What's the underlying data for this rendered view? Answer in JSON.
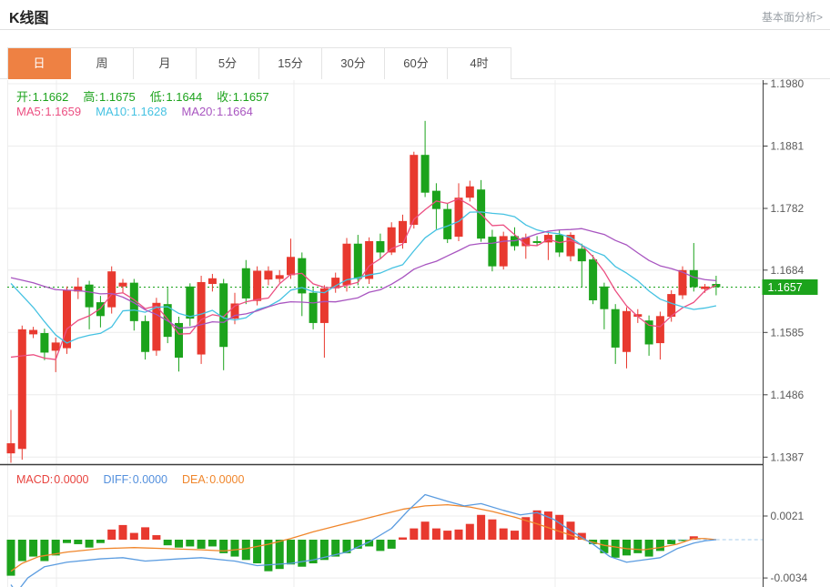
{
  "header": {
    "title": "K线图",
    "link_label": "基本面分析>"
  },
  "tabs": {
    "items": [
      "日",
      "周",
      "月",
      "5分",
      "15分",
      "30分",
      "60分",
      "4时"
    ],
    "active_index": 0
  },
  "ohlc_legend": [
    {
      "label": "开:",
      "value": "1.1662",
      "color": "#1ca31c"
    },
    {
      "label": "高:",
      "value": "1.1675",
      "color": "#1ca31c"
    },
    {
      "label": "低:",
      "value": "1.1644",
      "color": "#1ca31c"
    },
    {
      "label": "收:",
      "value": "1.1657",
      "color": "#1ca31c"
    }
  ],
  "ma_legend": [
    {
      "label": "MA5:",
      "value": "1.1659",
      "color": "#ec4f82"
    },
    {
      "label": "MA10:",
      "value": "1.1628",
      "color": "#45c2e2"
    },
    {
      "label": "MA20:",
      "value": "1.1664",
      "color": "#a855c0"
    }
  ],
  "macd_legend": [
    {
      "label": "MACD:",
      "value": "0.0000",
      "color": "#e8443f"
    },
    {
      "label": "DIFF:",
      "value": "0.0000",
      "color": "#5490dd"
    },
    {
      "label": "DEA:",
      "value": "0.0000",
      "color": "#f0862b"
    }
  ],
  "colors": {
    "up": "#e8392f",
    "down": "#1ca31c",
    "ma5": "#ec4f82",
    "ma10": "#45c2e2",
    "ma20": "#a855c0",
    "diff_line": "#5b9ce0",
    "dea_line": "#f0862b",
    "zero_dash": "#a9cdeb",
    "grid": "#ececec",
    "axis": "#3f3f3f",
    "axis_text": "#5a5a5a",
    "dotted_price_line": "#1ca31c",
    "price_tag_bg": "#1ca31c",
    "tab_active_bg": "#ee8143"
  },
  "chart_data": {
    "type": "candlestick+macd",
    "main": {
      "y_tick_labels": [
        "1.1980",
        "1.1881",
        "1.1782",
        "1.1684",
        "1.1585",
        "1.1486",
        "1.1387"
      ],
      "ylim": [
        1.1375,
        1.1985
      ],
      "last_price": "1.1657",
      "last_price_value": 1.1657,
      "ma_periods": [
        5,
        10,
        20
      ],
      "pre_closes": [
        1.167,
        1.167,
        1.167,
        1.167,
        1.167,
        1.167,
        1.167,
        1.167,
        1.167,
        1.167,
        1.178,
        1.178,
        1.178,
        1.178,
        1.178,
        1.178,
        1.158,
        1.158,
        1.158,
        1.158
      ],
      "candles_format": [
        "open",
        "high",
        "low",
        "close"
      ],
      "candles": [
        [
          1.1393,
          1.1462,
          1.1378,
          1.1409
        ],
        [
          1.14,
          1.1596,
          1.1383,
          1.159
        ],
        [
          1.1582,
          1.1594,
          1.1576,
          1.1589
        ],
        [
          1.1584,
          1.1591,
          1.1541,
          1.1553
        ],
        [
          1.1556,
          1.1577,
          1.1522,
          1.1569
        ],
        [
          1.156,
          1.1658,
          1.1551,
          1.1652
        ],
        [
          1.165,
          1.1672,
          1.1638,
          1.1658
        ],
        [
          1.1661,
          1.1667,
          1.159,
          1.1625
        ],
        [
          1.1633,
          1.1643,
          1.1593,
          1.1611
        ],
        [
          1.1625,
          1.169,
          1.1615,
          1.1682
        ],
        [
          1.1658,
          1.167,
          1.1648,
          1.1664
        ],
        [
          1.1664,
          1.167,
          1.1588,
          1.1603
        ],
        [
          1.1603,
          1.1612,
          1.1542,
          1.1554
        ],
        [
          1.1556,
          1.164,
          1.1548,
          1.1632
        ],
        [
          1.163,
          1.1656,
          1.1568,
          1.1578
        ],
        [
          1.16,
          1.161,
          1.1523,
          1.1545
        ],
        [
          1.1658,
          1.1663,
          1.1595,
          1.1607
        ],
        [
          1.155,
          1.1675,
          1.1535,
          1.1665
        ],
        [
          1.1662,
          1.1678,
          1.165,
          1.1671
        ],
        [
          1.1663,
          1.167,
          1.1525,
          1.1562
        ],
        [
          1.1607,
          1.1648,
          1.1598,
          1.1631
        ],
        [
          1.1687,
          1.17,
          1.163,
          1.1639
        ],
        [
          1.1635,
          1.169,
          1.1628,
          1.1683
        ],
        [
          1.1669,
          1.169,
          1.166,
          1.1683
        ],
        [
          1.167,
          1.1684,
          1.1664,
          1.1676
        ],
        [
          1.1676,
          1.1734,
          1.167,
          1.1705
        ],
        [
          1.1703,
          1.1712,
          1.1611,
          1.1647
        ],
        [
          1.1648,
          1.1656,
          1.159,
          1.16
        ],
        [
          1.16,
          1.166,
          1.1545,
          1.1655
        ],
        [
          1.1655,
          1.168,
          1.1648,
          1.1672
        ],
        [
          1.166,
          1.1735,
          1.165,
          1.1726
        ],
        [
          1.1726,
          1.174,
          1.166,
          1.167
        ],
        [
          1.167,
          1.1736,
          1.1662,
          1.173
        ],
        [
          1.173,
          1.1742,
          1.1702,
          1.1712
        ],
        [
          1.1712,
          1.176,
          1.1708,
          1.1752
        ],
        [
          1.1727,
          1.1772,
          1.1718,
          1.1762
        ],
        [
          1.1756,
          1.1872,
          1.175,
          1.1867
        ],
        [
          1.1867,
          1.1921,
          1.18,
          1.1807
        ],
        [
          1.181,
          1.1822,
          1.1749,
          1.1781
        ],
        [
          1.1781,
          1.179,
          1.1727,
          1.1733
        ],
        [
          1.1737,
          1.1822,
          1.173,
          1.1799
        ],
        [
          1.1799,
          1.1826,
          1.1793,
          1.1817
        ],
        [
          1.1812,
          1.1827,
          1.1729,
          1.1734
        ],
        [
          1.1737,
          1.1748,
          1.1682,
          1.169
        ],
        [
          1.169,
          1.1745,
          1.1685,
          1.1738
        ],
        [
          1.1738,
          1.1752,
          1.1715,
          1.1722
        ],
        [
          1.1722,
          1.1742,
          1.1702,
          1.1736
        ],
        [
          1.173,
          1.1738,
          1.1722,
          1.1728
        ],
        [
          1.1728,
          1.1745,
          1.17,
          1.174
        ],
        [
          1.174,
          1.1748,
          1.1705,
          1.1712
        ],
        [
          1.1706,
          1.1744,
          1.1698,
          1.174
        ],
        [
          1.1718,
          1.1726,
          1.1657,
          1.1698
        ],
        [
          1.1701,
          1.1708,
          1.163,
          1.1636
        ],
        [
          1.1658,
          1.1664,
          1.159,
          1.1622
        ],
        [
          1.1622,
          1.163,
          1.1535,
          1.1561
        ],
        [
          1.1554,
          1.1625,
          1.1528,
          1.1619
        ],
        [
          1.161,
          1.1622,
          1.16,
          1.1614
        ],
        [
          1.1604,
          1.1612,
          1.1548,
          1.1566
        ],
        [
          1.1568,
          1.1618,
          1.1542,
          1.1611
        ],
        [
          1.161,
          1.1652,
          1.1602,
          1.1646
        ],
        [
          1.1644,
          1.169,
          1.1638,
          1.1684
        ],
        [
          1.1684,
          1.1727,
          1.165,
          1.1657
        ],
        [
          1.1654,
          1.1662,
          1.1648,
          1.1658
        ],
        [
          1.1662,
          1.1675,
          1.1644,
          1.1657
        ]
      ]
    },
    "macd": {
      "y_tick_labels": [
        "0.0021",
        "-0.0034"
      ],
      "y_tick_values": [
        0.0021,
        -0.0034
      ],
      "bars": [
        -0.0032,
        -0.0019,
        -0.0015,
        -0.0019,
        -0.0014,
        -0.0003,
        -0.0004,
        -0.0007,
        -0.0003,
        0.0009,
        0.0013,
        0.0006,
        0.0011,
        0.0004,
        -0.0005,
        -0.0007,
        -0.0006,
        -0.0008,
        -0.0006,
        -0.0012,
        -0.0015,
        -0.0018,
        -0.0021,
        -0.0028,
        -0.0026,
        -0.0022,
        -0.0024,
        -0.0021,
        -0.0018,
        -0.0015,
        -0.0012,
        -0.0008,
        -0.0006,
        -0.001,
        -0.0008,
        0.0002,
        0.001,
        0.0016,
        0.001,
        0.0008,
        0.0009,
        0.0014,
        0.0022,
        0.0018,
        0.001,
        0.0008,
        0.002,
        0.0026,
        0.0025,
        0.0022,
        0.0016,
        0.0006,
        -0.0004,
        -0.0012,
        -0.0016,
        -0.0014,
        -0.0012,
        -0.0015,
        -0.001,
        -0.0004,
        -0.0001,
        0.0003,
        0.0,
        0.0
      ],
      "diff_points": [
        [
          0,
          -0.004
        ],
        [
          0.5,
          -0.0047
        ],
        [
          1.5,
          -0.0034
        ],
        [
          3,
          -0.0024
        ],
        [
          5,
          -0.002
        ],
        [
          8,
          -0.0017
        ],
        [
          10,
          -0.0016
        ],
        [
          12,
          -0.0019
        ],
        [
          15,
          -0.0017
        ],
        [
          17,
          -0.0016
        ],
        [
          20,
          -0.0019
        ],
        [
          22,
          -0.0023
        ],
        [
          25,
          -0.0021
        ],
        [
          27,
          -0.0018
        ],
        [
          30,
          -0.0011
        ],
        [
          32,
          -0.0002
        ],
        [
          34,
          0.001
        ],
        [
          35.5,
          0.0026
        ],
        [
          37,
          0.004
        ],
        [
          39,
          0.0034
        ],
        [
          40.5,
          0.003
        ],
        [
          42,
          0.0032
        ],
        [
          44,
          0.0026
        ],
        [
          45.5,
          0.0022
        ],
        [
          47,
          0.0024
        ],
        [
          48.5,
          0.0018
        ],
        [
          50,
          0.0008
        ],
        [
          52,
          -0.0004
        ],
        [
          53.5,
          -0.0015
        ],
        [
          55,
          -0.002
        ],
        [
          56.5,
          -0.0018
        ],
        [
          58,
          -0.0016
        ],
        [
          59.5,
          -0.0008
        ],
        [
          61,
          -0.0003
        ],
        [
          62,
          -0.0001
        ],
        [
          63,
          0.0
        ]
      ],
      "dea_points": [
        [
          0,
          -0.0028
        ],
        [
          1,
          -0.0021
        ],
        [
          2.5,
          -0.0015
        ],
        [
          5,
          -0.0011
        ],
        [
          8,
          -0.0008
        ],
        [
          11,
          -0.0007
        ],
        [
          14,
          -0.0008
        ],
        [
          17,
          -0.0009
        ],
        [
          19,
          -0.001
        ],
        [
          21,
          -0.0008
        ],
        [
          23,
          -0.0004
        ],
        [
          25,
          0.0001
        ],
        [
          27,
          0.0007
        ],
        [
          29,
          0.0012
        ],
        [
          31,
          0.0017
        ],
        [
          33,
          0.0022
        ],
        [
          35,
          0.0027
        ],
        [
          37,
          0.003
        ],
        [
          39,
          0.0031
        ],
        [
          41,
          0.0029
        ],
        [
          43,
          0.0025
        ],
        [
          45,
          0.002
        ],
        [
          47,
          0.0014
        ],
        [
          48.5,
          0.0009
        ],
        [
          50,
          0.0004
        ],
        [
          51.5,
          -0.0001
        ],
        [
          53,
          -0.0005
        ],
        [
          55,
          -0.0008
        ],
        [
          56.5,
          -0.0009
        ],
        [
          58,
          -0.0007
        ],
        [
          59.5,
          -0.0004
        ],
        [
          61,
          0.0001
        ],
        [
          62,
          0.0001
        ],
        [
          63,
          0.0
        ]
      ]
    }
  }
}
